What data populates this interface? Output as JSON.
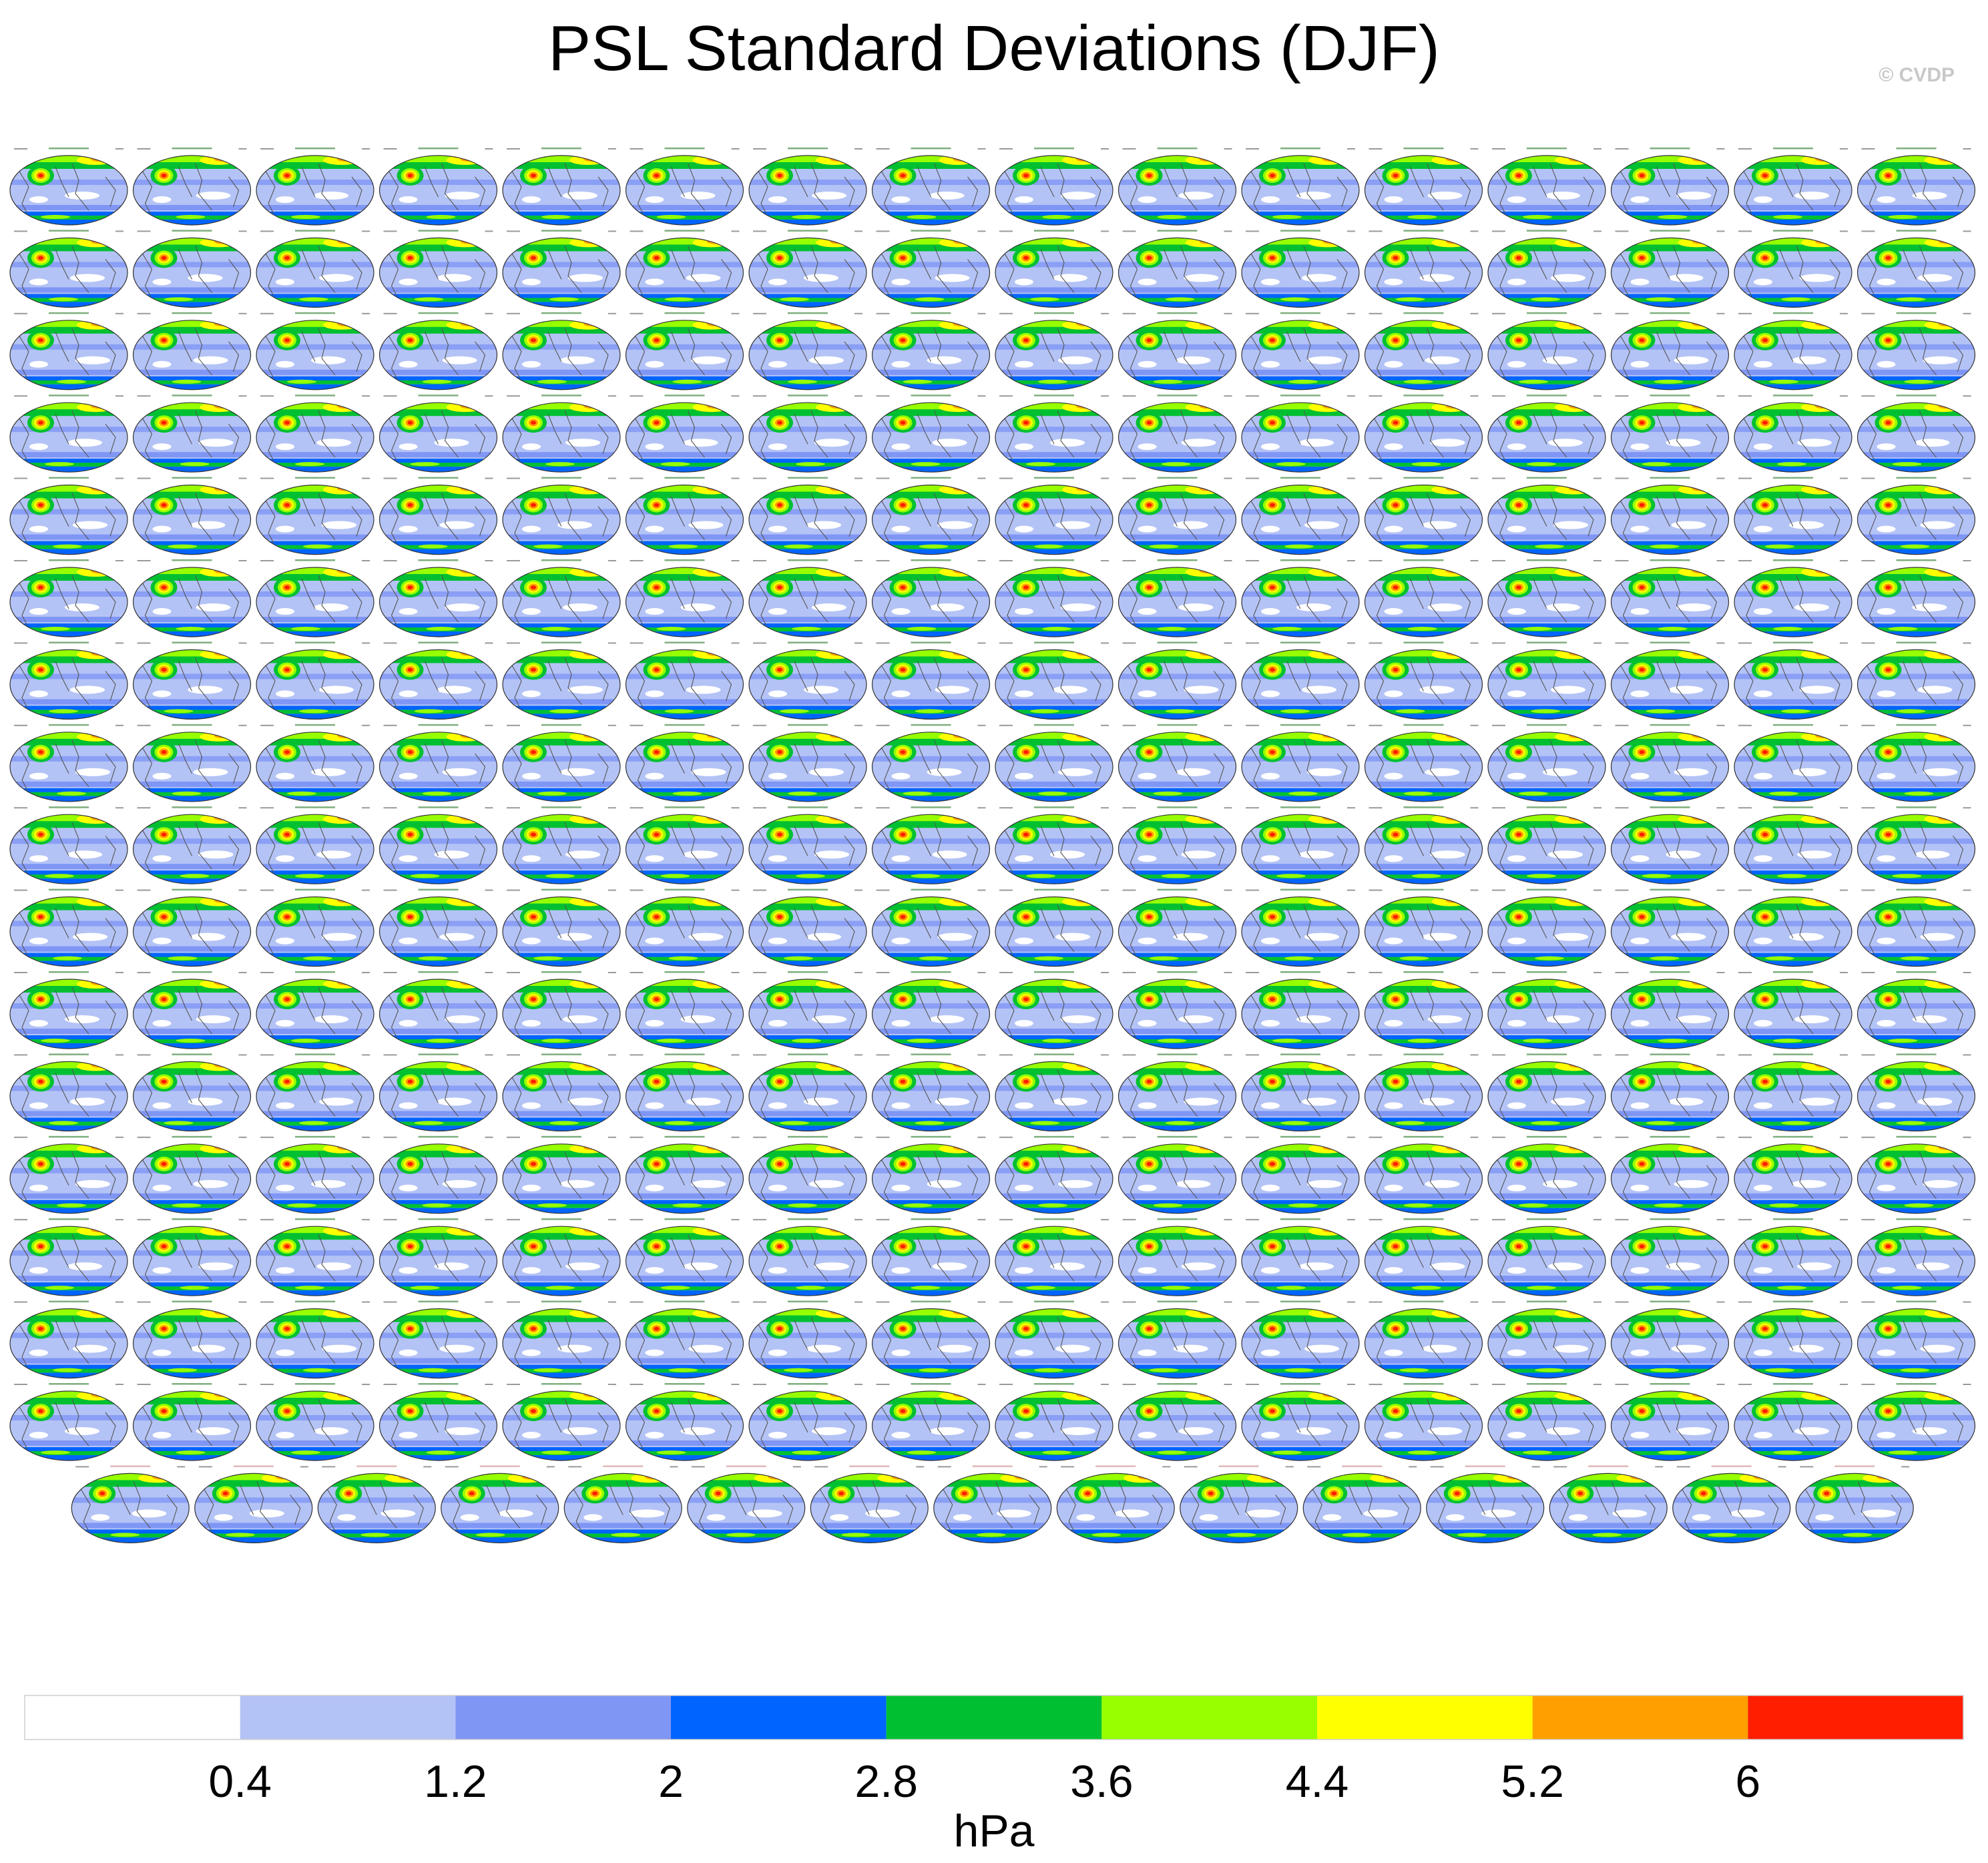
{
  "title": "PSL Standard Deviations (DJF)",
  "credit": "© CVDP",
  "chart_data": {
    "type": "heatmap",
    "description_kind": "panel grid of global maps",
    "panel_rows": 17,
    "panel_columns": 16,
    "last_row_panels": 15,
    "colorbar": {
      "levels": [
        0.4,
        1.2,
        2,
        2.8,
        3.6,
        4.4,
        5.2,
        6
      ],
      "tick_labels": [
        "0.4",
        "1.2",
        "2",
        "2.8",
        "3.6",
        "4.4",
        "5.2",
        "6"
      ],
      "colors": [
        "#ffffff",
        "#b4c3f6",
        "#8096f5",
        "#0064ff",
        "#00c032",
        "#96ff00",
        "#ffff00",
        "#ffa000",
        "#ff1e00"
      ],
      "unit": "hPa"
    }
  }
}
